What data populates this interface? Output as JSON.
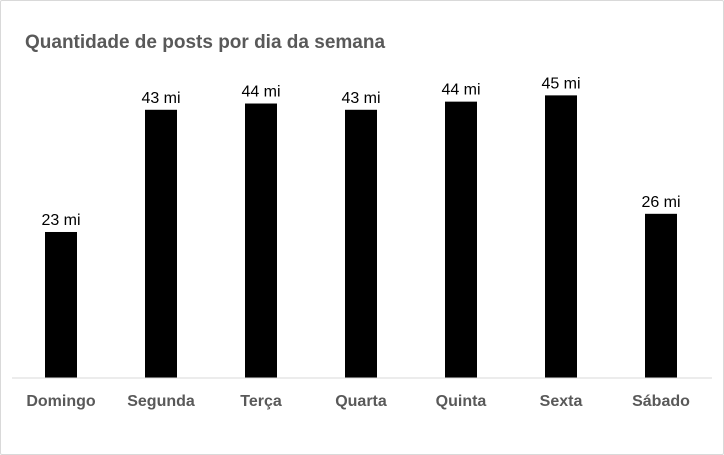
{
  "chart_data": {
    "type": "bar",
    "title": "Quantidade de posts por dia da semana",
    "xlabel": "",
    "ylabel": "",
    "categories": [
      "Domingo",
      "Segunda",
      "Terça",
      "Quarta",
      "Quinta",
      "Sexta",
      "Sábado"
    ],
    "values": [
      23.3,
      42.8,
      43.8,
      42.8,
      44.1,
      45.1,
      26.2
    ],
    "data_labels": [
      "23 mi",
      "43 mi",
      "44 mi",
      "43 mi",
      "44 mi",
      "45 mi",
      "26 mi"
    ],
    "unit": "mi",
    "ylim": [
      0,
      48
    ],
    "grid": false,
    "legend": "none",
    "colors": {
      "bar": "#000000",
      "axis": "#d9d9d9",
      "text": "#595959"
    }
  }
}
